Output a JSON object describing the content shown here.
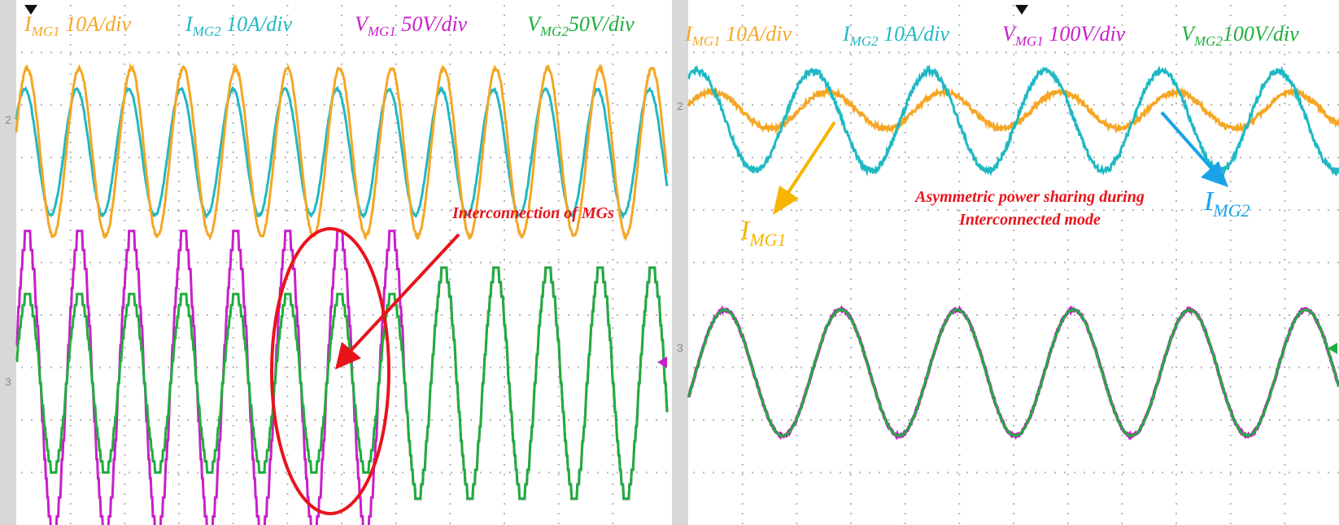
{
  "colors": {
    "img1": "#f5a623",
    "img2": "#1fb8c4",
    "vmg1": "#c81fc8",
    "vmg2": "#1fae3c",
    "annotation": "#e8141c",
    "arrow_img1": "#f7b500",
    "arrow_img2": "#1aa3e8",
    "grid": "#b4b4b4"
  },
  "left_panel": {
    "labels": [
      {
        "sym": "I",
        "sub": "MG1",
        "rest": " 10A/div",
        "color_key": "img1"
      },
      {
        "sym": "I",
        "sub": "MG2",
        "rest": " 10A/div",
        "color_key": "img2"
      },
      {
        "sym": "V",
        "sub": "MG1",
        "rest": " 50V/div",
        "color_key": "vmg1"
      },
      {
        "sym": "V",
        "sub": "MG2",
        "rest": "50V/div",
        "color_key": "vmg2"
      }
    ],
    "annotation": "Interconnection of MGs",
    "channel_markers": [
      "2",
      "3"
    ]
  },
  "right_panel": {
    "labels": [
      {
        "sym": "I",
        "sub": "MG1",
        "rest": " 10A/div",
        "color_key": "img1"
      },
      {
        "sym": "I",
        "sub": "MG2",
        "rest": " 10A/div",
        "color_key": "img2"
      },
      {
        "sym": "V",
        "sub": "MG1",
        "rest": " 100V/div",
        "color_key": "vmg1"
      },
      {
        "sym": "V",
        "sub": "MG2",
        "rest": "100V/div",
        "color_key": "vmg2"
      }
    ],
    "annotation_line1": "Asymmetric power sharing during",
    "annotation_line2": "Interconnected mode",
    "callout_img1": {
      "sym": "I",
      "sub": "MG1"
    },
    "callout_img2": {
      "sym": "I",
      "sub": "MG2"
    },
    "channel_markers": [
      "2",
      "3"
    ]
  },
  "chart_data": [
    {
      "type": "line",
      "panel": "left",
      "grid": true,
      "grid_divisions": {
        "x": 12,
        "y": 10
      },
      "series": [
        {
          "name": "IMG1",
          "scale": "10A/div",
          "waveform": "sine",
          "cycles": 12.5,
          "amplitude_div": 1.6,
          "offset_div": 2.9
        },
        {
          "name": "IMG2",
          "scale": "10A/div",
          "waveform": "sine",
          "cycles": 12.5,
          "amplitude_div": 1.2,
          "offset_div": 2.9
        },
        {
          "name": "VMG1",
          "scale": "50V/div",
          "waveform": "sine",
          "cycles": 12.5,
          "amplitude_div_before": 2.9,
          "amplitude_div_after": 2.2,
          "offset_div": 7.3
        },
        {
          "name": "VMG2",
          "scale": "50V/div",
          "waveform": "sine",
          "cycles": 12.5,
          "amplitude_div_before": 1.7,
          "amplitude_div_after": 2.2,
          "offset_div": 7.3
        }
      ],
      "event": {
        "label": "Interconnection of MGs",
        "at_fraction": 0.6
      }
    },
    {
      "type": "line",
      "panel": "right",
      "grid": true,
      "grid_divisions": {
        "x": 12,
        "y": 10
      },
      "series": [
        {
          "name": "IMG1",
          "scale": "10A/div",
          "waveform": "sine",
          "cycles": 5.6,
          "amplitude_div": 0.35,
          "offset_div": 2.1
        },
        {
          "name": "IMG2",
          "scale": "10A/div",
          "waveform": "sine",
          "cycles": 5.6,
          "amplitude_div": 0.95,
          "offset_div": 2.3
        },
        {
          "name": "VMG1",
          "scale": "100V/div",
          "waveform": "sine",
          "cycles": 5.6,
          "amplitude_div": 1.2,
          "offset_div": 7.1
        },
        {
          "name": "VMG2",
          "scale": "100V/div",
          "waveform": "sine",
          "cycles": 5.6,
          "amplitude_div": 1.2,
          "offset_div": 7.1
        }
      ]
    }
  ]
}
